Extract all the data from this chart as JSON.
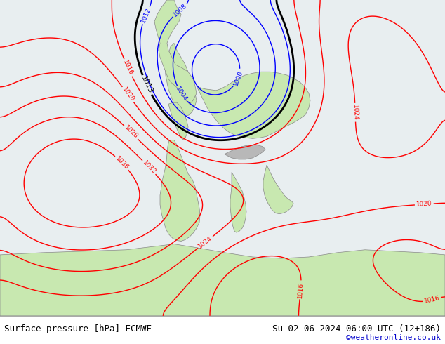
{
  "title_left": "Surface pressure [hPa] ECMWF",
  "title_right": "Su 02-06-2024 06:00 UTC (12+186)",
  "credit": "©weatheronline.co.uk",
  "fig_width": 6.34,
  "fig_height": 4.9,
  "dpi": 100,
  "title_fontsize": 9,
  "credit_color": "#0000cc",
  "sea_color": "#e8eef0",
  "land_color": "#c8e8b0",
  "mountain_color": "#b8b8b8",
  "bottom_bar_color": "#f0f0f0",
  "contour_red": "#ff0000",
  "contour_blue": "#0000ff",
  "contour_black": "#000000",
  "lw_thin": 1.0,
  "lw_thick": 2.0
}
